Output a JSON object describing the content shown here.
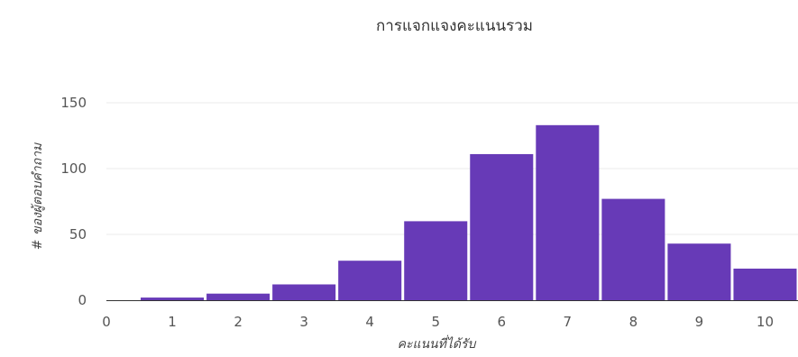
{
  "chart_data": {
    "type": "bar",
    "title": "การแจกแจงคะแนนรวม",
    "xlabel": "คะแนนที่ได้รับ",
    "ylabel": "# ของผู้ตอบคำถาม",
    "categories": [
      1,
      2,
      3,
      4,
      5,
      6,
      7,
      8,
      9,
      10
    ],
    "values": [
      2,
      5,
      12,
      30,
      60,
      111,
      133,
      77,
      43,
      24
    ],
    "xlim": [
      0,
      10.5
    ],
    "ylim": [
      0,
      150
    ],
    "x_ticks": [
      "0",
      "1",
      "2",
      "3",
      "4",
      "5",
      "6",
      "7",
      "8",
      "9",
      "10"
    ],
    "y_ticks": [
      "0",
      "50",
      "100",
      "150"
    ],
    "grid": true,
    "legend": "none",
    "colors": {
      "bar": "#673ab7",
      "grid": "#ebebeb",
      "axis": "#333333",
      "text": "#555555"
    }
  }
}
